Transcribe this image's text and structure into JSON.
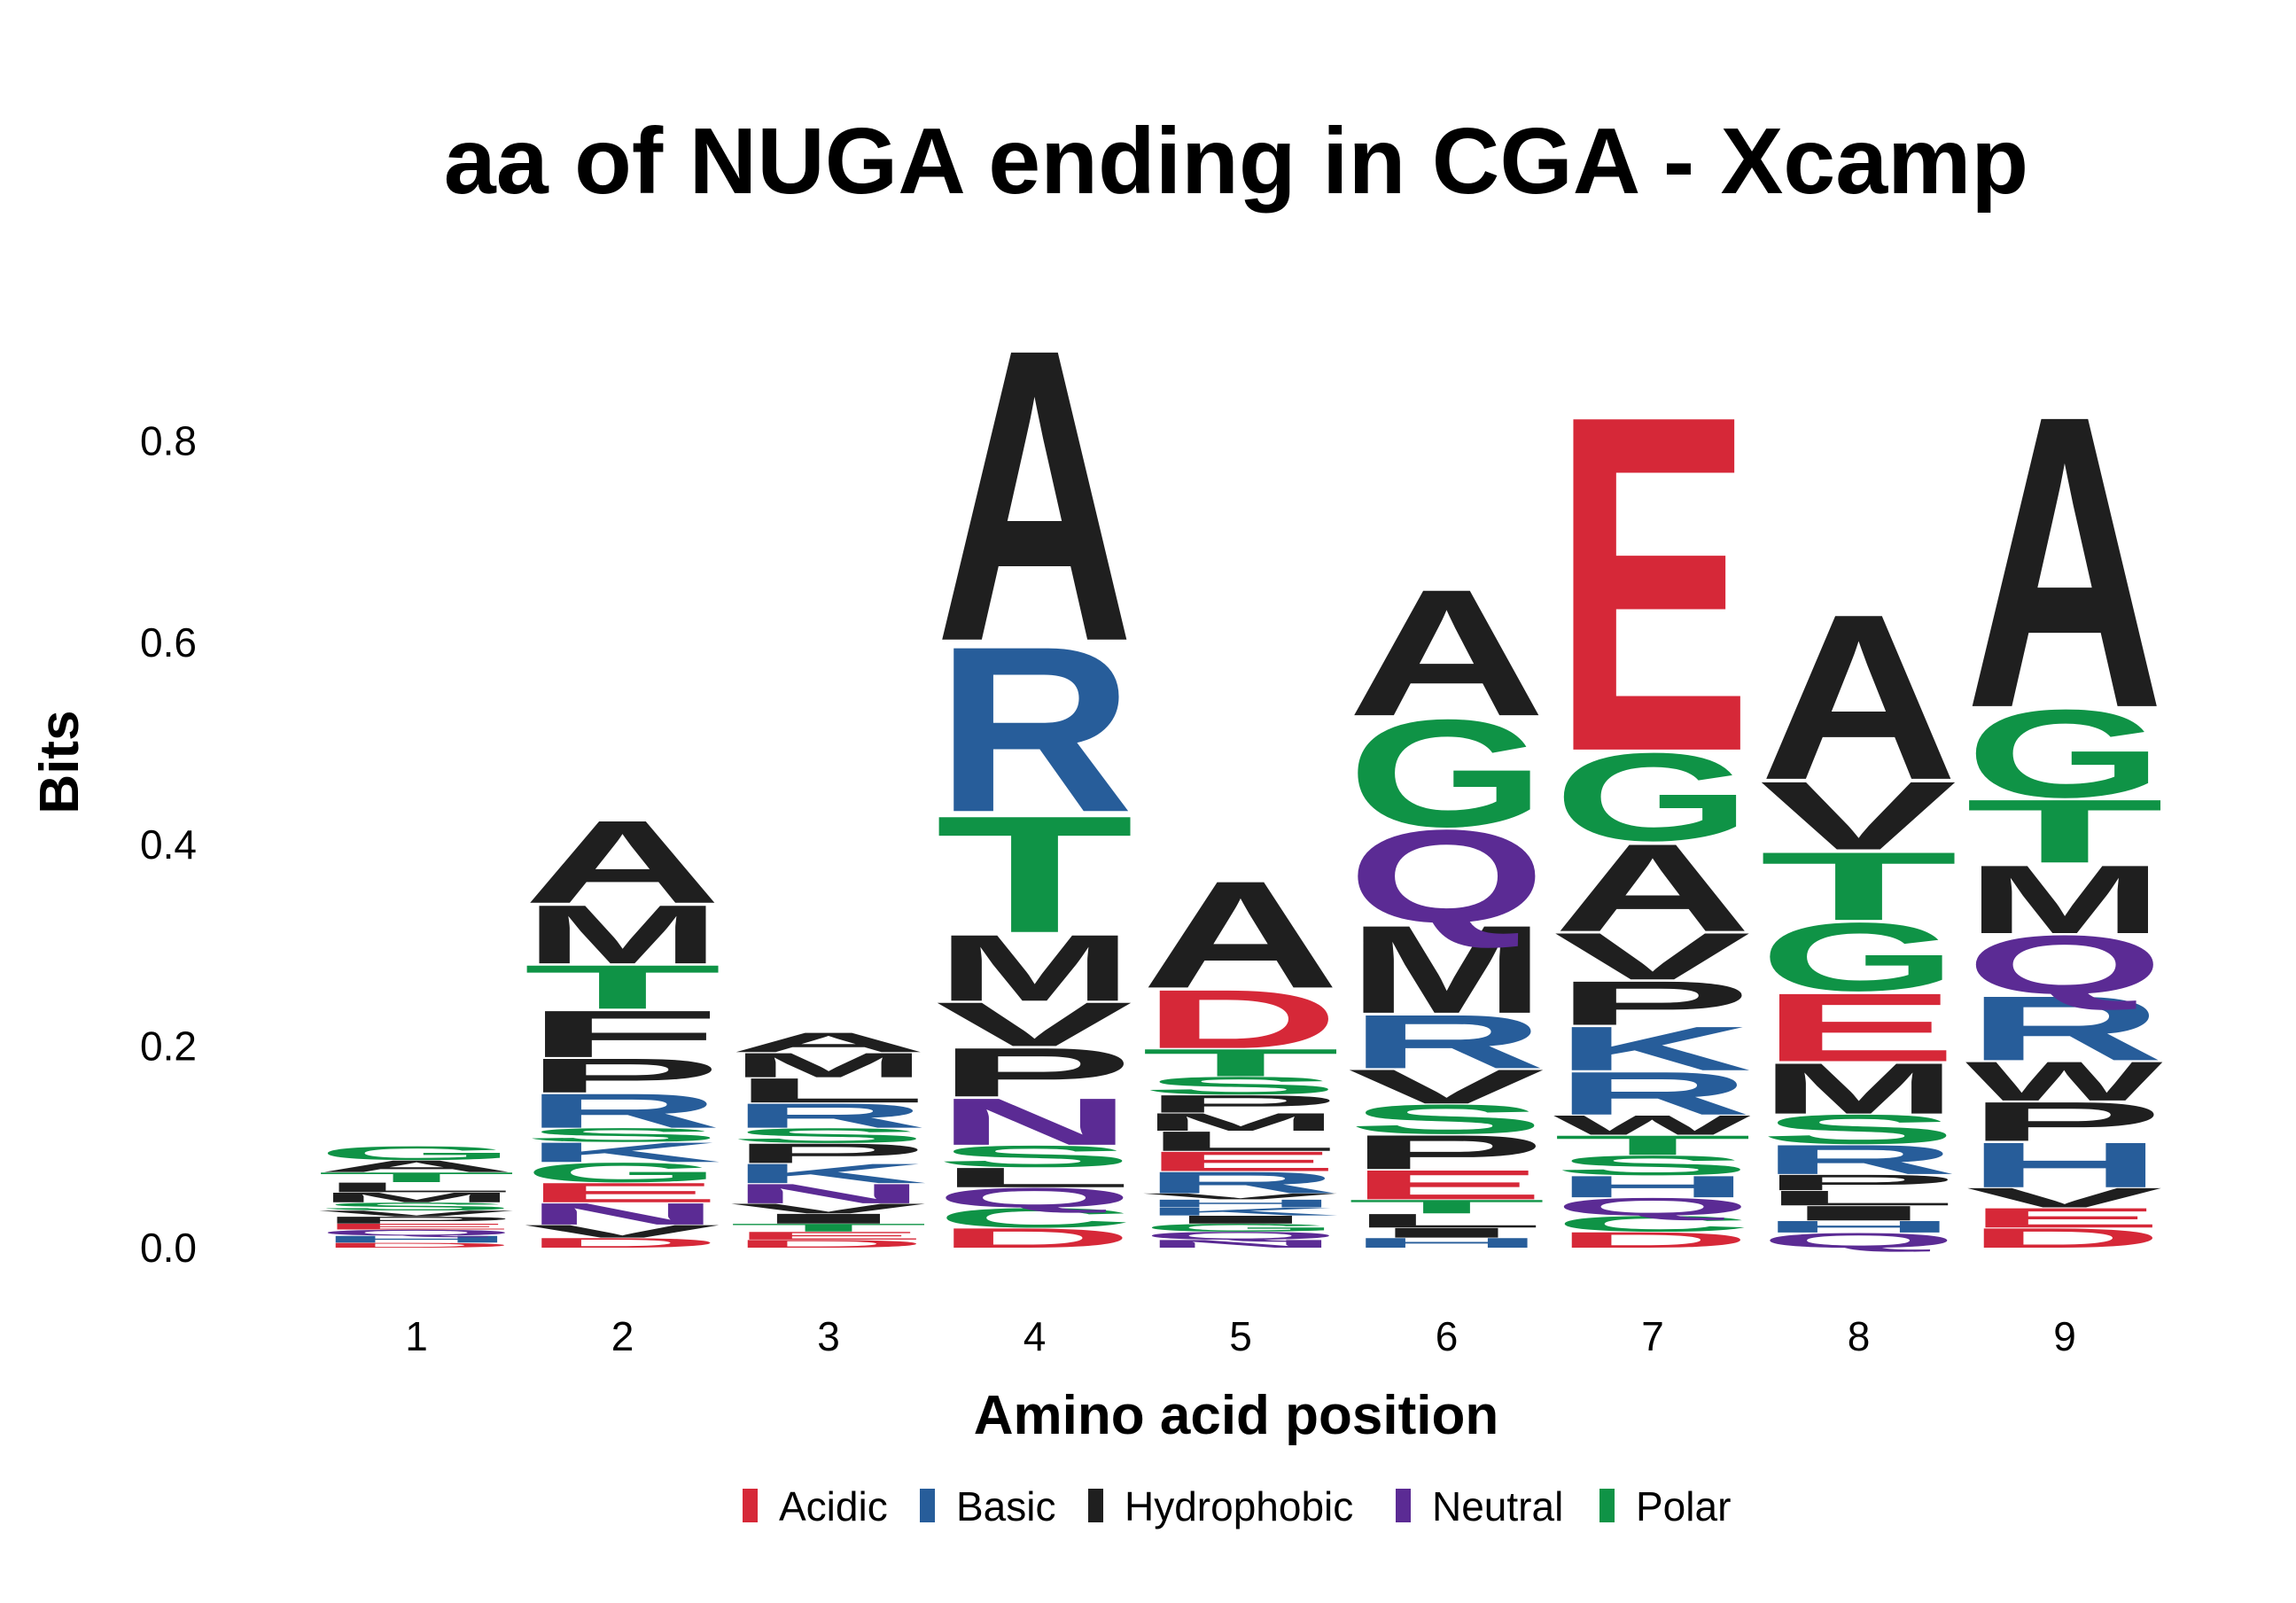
{
  "chart_data": {
    "type": "sequence-logo",
    "title": "aa of NUGA ending in CGA - Xcamp",
    "xlabel": "Amino acid position",
    "ylabel": "Bits",
    "ylim": [
      0,
      0.92
    ],
    "yticks": [
      "0.0",
      "0.2",
      "0.4",
      "0.6",
      "0.8"
    ],
    "grid": false,
    "legend_position": "bottom",
    "color_scheme": {
      "Acidic": "#d62838",
      "Basic": "#275d9a",
      "Hydrophobic": "#1f1f1f",
      "Neutral": "#5b2b94",
      "Polar": "#0f9346"
    },
    "legend": [
      "Acidic",
      "Basic",
      "Hydrophobic",
      "Neutral",
      "Polar"
    ],
    "positions": [
      {
        "label": "1",
        "stack": [
          {
            "aa": "D",
            "bits": 0.005
          },
          {
            "aa": "H",
            "bits": 0.007
          },
          {
            "aa": "Q",
            "bits": 0.006
          },
          {
            "aa": "E",
            "bits": 0.006
          },
          {
            "aa": "P",
            "bits": 0.007
          },
          {
            "aa": "V",
            "bits": 0.006
          },
          {
            "aa": "S",
            "bits": 0.008
          },
          {
            "aa": "M",
            "bits": 0.01
          },
          {
            "aa": "L",
            "bits": 0.01
          },
          {
            "aa": "T",
            "bits": 0.01
          },
          {
            "aa": "A",
            "bits": 0.012
          },
          {
            "aa": "G",
            "bits": 0.014
          }
        ]
      },
      {
        "label": "2",
        "stack": [
          {
            "aa": "D",
            "bits": 0.01
          },
          {
            "aa": "V",
            "bits": 0.013
          },
          {
            "aa": "N",
            "bits": 0.022
          },
          {
            "aa": "E",
            "bits": 0.02
          },
          {
            "aa": "G",
            "bits": 0.02
          },
          {
            "aa": "K",
            "bits": 0.02
          },
          {
            "aa": "S",
            "bits": 0.014
          },
          {
            "aa": "R",
            "bits": 0.035
          },
          {
            "aa": "P",
            "bits": 0.035
          },
          {
            "aa": "F",
            "bits": 0.048
          },
          {
            "aa": "T",
            "bits": 0.045
          },
          {
            "aa": "M",
            "bits": 0.06
          },
          {
            "aa": "A",
            "bits": 0.085
          }
        ]
      },
      {
        "label": "3",
        "stack": [
          {
            "aa": "D",
            "bits": 0.008
          },
          {
            "aa": "E",
            "bits": 0.008
          },
          {
            "aa": "T",
            "bits": 0.008
          },
          {
            "aa": "I",
            "bits": 0.01
          },
          {
            "aa": "V",
            "bits": 0.01
          },
          {
            "aa": "N",
            "bits": 0.02
          },
          {
            "aa": "K",
            "bits": 0.02
          },
          {
            "aa": "P",
            "bits": 0.02
          },
          {
            "aa": "S",
            "bits": 0.015
          },
          {
            "aa": "R",
            "bits": 0.025
          },
          {
            "aa": "L",
            "bits": 0.025
          },
          {
            "aa": "M",
            "bits": 0.025
          },
          {
            "aa": "A",
            "bits": 0.02
          }
        ]
      },
      {
        "label": "4",
        "stack": [
          {
            "aa": "D",
            "bits": 0.02
          },
          {
            "aa": "C",
            "bits": 0.02
          },
          {
            "aa": "Q",
            "bits": 0.02
          },
          {
            "aa": "L",
            "bits": 0.02
          },
          {
            "aa": "S",
            "bits": 0.022
          },
          {
            "aa": "N",
            "bits": 0.048
          },
          {
            "aa": "P",
            "bits": 0.05
          },
          {
            "aa": "V",
            "bits": 0.045
          },
          {
            "aa": "M",
            "bits": 0.068
          },
          {
            "aa": "T",
            "bits": 0.12
          },
          {
            "aa": "R",
            "bits": 0.17
          },
          {
            "aa": "A",
            "bits": 0.3
          }
        ]
      },
      {
        "label": "5",
        "stack": [
          {
            "aa": "N",
            "bits": 0.008
          },
          {
            "aa": "Q",
            "bits": 0.008
          },
          {
            "aa": "G",
            "bits": 0.008
          },
          {
            "aa": "I",
            "bits": 0.008
          },
          {
            "aa": "K",
            "bits": 0.008
          },
          {
            "aa": "H",
            "bits": 0.008
          },
          {
            "aa": "V",
            "bits": 0.006
          },
          {
            "aa": "R",
            "bits": 0.022
          },
          {
            "aa": "E",
            "bits": 0.02
          },
          {
            "aa": "L",
            "bits": 0.02
          },
          {
            "aa": "M",
            "bits": 0.018
          },
          {
            "aa": "P",
            "bits": 0.018
          },
          {
            "aa": "S",
            "bits": 0.018
          },
          {
            "aa": "T",
            "bits": 0.028
          },
          {
            "aa": "D",
            "bits": 0.06
          },
          {
            "aa": "A",
            "bits": 0.11
          }
        ]
      },
      {
        "label": "6",
        "stack": [
          {
            "aa": "H",
            "bits": 0.01
          },
          {
            "aa": "I",
            "bits": 0.01
          },
          {
            "aa": "L",
            "bits": 0.014
          },
          {
            "aa": "T",
            "bits": 0.014
          },
          {
            "aa": "E",
            "bits": 0.03
          },
          {
            "aa": "P",
            "bits": 0.035
          },
          {
            "aa": "S",
            "bits": 0.03
          },
          {
            "aa": "V",
            "bits": 0.035
          },
          {
            "aa": "R",
            "bits": 0.055
          },
          {
            "aa": "M",
            "bits": 0.09
          },
          {
            "aa": "Q",
            "bits": 0.095
          },
          {
            "aa": "G",
            "bits": 0.11
          },
          {
            "aa": "A",
            "bits": 0.13
          }
        ]
      },
      {
        "label": "7",
        "stack": [
          {
            "aa": "D",
            "bits": 0.016
          },
          {
            "aa": "C",
            "bits": 0.016
          },
          {
            "aa": "Q",
            "bits": 0.018
          },
          {
            "aa": "H",
            "bits": 0.022
          },
          {
            "aa": "S",
            "bits": 0.02
          },
          {
            "aa": "T",
            "bits": 0.02
          },
          {
            "aa": "W",
            "bits": 0.02
          },
          {
            "aa": "R",
            "bits": 0.044
          },
          {
            "aa": "K",
            "bits": 0.045
          },
          {
            "aa": "P",
            "bits": 0.045
          },
          {
            "aa": "V",
            "bits": 0.048
          },
          {
            "aa": "A",
            "bits": 0.09
          },
          {
            "aa": "G",
            "bits": 0.09
          },
          {
            "aa": "E",
            "bits": 0.345
          }
        ]
      },
      {
        "label": "8",
        "stack": [
          {
            "aa": "Q",
            "bits": 0.015
          },
          {
            "aa": "H",
            "bits": 0.012
          },
          {
            "aa": "I",
            "bits": 0.015
          },
          {
            "aa": "L",
            "bits": 0.015
          },
          {
            "aa": "P",
            "bits": 0.016
          },
          {
            "aa": "R",
            "bits": 0.03
          },
          {
            "aa": "S",
            "bits": 0.03
          },
          {
            "aa": "M",
            "bits": 0.052
          },
          {
            "aa": "E",
            "bits": 0.07
          },
          {
            "aa": "G",
            "bits": 0.07
          },
          {
            "aa": "T",
            "bits": 0.07
          },
          {
            "aa": "V",
            "bits": 0.07
          },
          {
            "aa": "A",
            "bits": 0.17
          }
        ]
      },
      {
        "label": "9",
        "stack": [
          {
            "aa": "D",
            "bits": 0.02
          },
          {
            "aa": "E",
            "bits": 0.02
          },
          {
            "aa": "V",
            "bits": 0.02
          },
          {
            "aa": "H",
            "bits": 0.046
          },
          {
            "aa": "P",
            "bits": 0.04
          },
          {
            "aa": "W",
            "bits": 0.04
          },
          {
            "aa": "R",
            "bits": 0.066
          },
          {
            "aa": "Q",
            "bits": 0.06
          },
          {
            "aa": "M",
            "bits": 0.07
          },
          {
            "aa": "T",
            "bits": 0.065
          },
          {
            "aa": "G",
            "bits": 0.09
          },
          {
            "aa": "A",
            "bits": 0.3
          }
        ]
      }
    ]
  }
}
